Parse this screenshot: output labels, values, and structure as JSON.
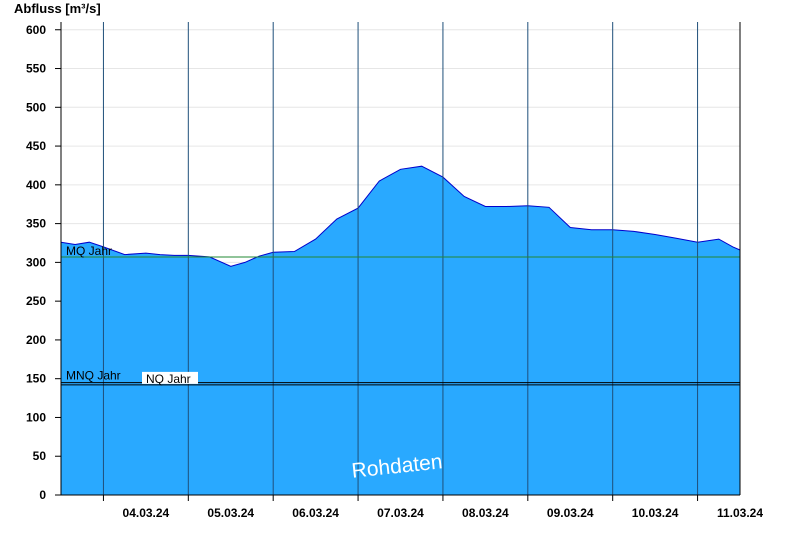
{
  "chart_data": {
    "type": "area",
    "ylabel": "Abfluss [m³/s]",
    "ylim": [
      0,
      610
    ],
    "yticks": [
      0,
      50,
      100,
      150,
      200,
      250,
      300,
      350,
      400,
      450,
      500,
      550,
      600
    ],
    "xlim": [
      "2024-03-03T12:00",
      "2024-03-11T12:00"
    ],
    "xticks": [
      "04.03.24",
      "05.03.24",
      "06.03.24",
      "07.03.24",
      "08.03.24",
      "09.03.24",
      "10.03.24",
      "11.03.24"
    ],
    "grid": true,
    "colors": {
      "fill": "#29a9ff",
      "line": "#0000cc",
      "mq_line": "#228833",
      "ref_line": "#000000"
    },
    "reference_lines": [
      {
        "label": "MQ Jahr",
        "value": 307
      },
      {
        "label": "MNQ Jahr",
        "value": 145
      },
      {
        "label": "NQ Jahr",
        "value": 142
      }
    ],
    "watermark": "Rohdaten",
    "series": [
      {
        "x": [
          "2024-03-03T12:00",
          "2024-03-03T16:00",
          "2024-03-03T20:00",
          "2024-03-04T00:00",
          "2024-03-04T06:00",
          "2024-03-04T12:00",
          "2024-03-04T16:00",
          "2024-03-04T20:00",
          "2024-03-05T00:00",
          "2024-03-05T06:00",
          "2024-03-05T12:00",
          "2024-03-05T16:00",
          "2024-03-05T20:00",
          "2024-03-06T00:00",
          "2024-03-06T06:00",
          "2024-03-06T12:00",
          "2024-03-06T18:00",
          "2024-03-07T00:00",
          "2024-03-07T06:00",
          "2024-03-07T12:00",
          "2024-03-07T18:00",
          "2024-03-08T00:00",
          "2024-03-08T06:00",
          "2024-03-08T12:00",
          "2024-03-08T18:00",
          "2024-03-09T00:00",
          "2024-03-09T06:00",
          "2024-03-09T12:00",
          "2024-03-09T18:00",
          "2024-03-10T00:00",
          "2024-03-10T06:00",
          "2024-03-10T12:00",
          "2024-03-10T18:00",
          "2024-03-11T00:00",
          "2024-03-11T06:00",
          "2024-03-11T10:00",
          "2024-03-11T12:00"
        ],
        "y": [
          326,
          323,
          326,
          320,
          310,
          312,
          310,
          309,
          309,
          307,
          295,
          300,
          308,
          313,
          314,
          330,
          356,
          370,
          405,
          420,
          424,
          410,
          385,
          372,
          372,
          373,
          371,
          345,
          342,
          342,
          340,
          336,
          331,
          326,
          330,
          320,
          316
        ]
      }
    ]
  }
}
